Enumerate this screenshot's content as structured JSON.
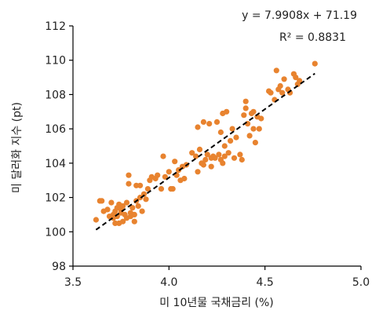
{
  "chart_data": {
    "type": "scatter",
    "xlabel": "미 10년물 국채금리 (%)",
    "ylabel": "미 달러화 지수 (pt)",
    "xlim": [
      3.5,
      5.0
    ],
    "ylim": [
      98,
      112
    ],
    "xticks": [
      3.5,
      4.0,
      4.5,
      5.0
    ],
    "xtick_labels": [
      "3.5",
      "4.0",
      "4.5",
      "5.0"
    ],
    "yticks": [
      98,
      100,
      102,
      104,
      106,
      108,
      110,
      112
    ],
    "ytick_labels": [
      "98",
      "100",
      "102",
      "104",
      "106",
      "108",
      "110",
      "112"
    ],
    "grid": false,
    "legend": "none",
    "colors": {
      "points": "#e8832f",
      "trendline": "#000000",
      "axis": "#000000"
    },
    "trendline": {
      "slope": 7.9908,
      "intercept": 71.19,
      "x_range": [
        3.62,
        4.76
      ],
      "style": "dashed"
    },
    "annotations": {
      "equation": "y = 7.9908x + 71.19",
      "r_squared": "R² = 0.8831"
    },
    "points": [
      [
        3.62,
        100.7
      ],
      [
        3.64,
        101.8
      ],
      [
        3.65,
        101.8
      ],
      [
        3.66,
        101.2
      ],
      [
        3.68,
        101.3
      ],
      [
        3.69,
        100.9
      ],
      [
        3.7,
        101.7
      ],
      [
        3.71,
        101.0
      ],
      [
        3.71,
        100.8
      ],
      [
        3.72,
        101.2
      ],
      [
        3.72,
        100.5
      ],
      [
        3.73,
        101.4
      ],
      [
        3.73,
        100.9
      ],
      [
        3.74,
        101.6
      ],
      [
        3.74,
        100.5
      ],
      [
        3.75,
        101.1
      ],
      [
        3.75,
        101.3
      ],
      [
        3.76,
        100.6
      ],
      [
        3.76,
        101.5
      ],
      [
        3.77,
        101.0
      ],
      [
        3.78,
        101.7
      ],
      [
        3.78,
        100.8
      ],
      [
        3.79,
        102.8
      ],
      [
        3.79,
        103.3
      ],
      [
        3.8,
        101.1
      ],
      [
        3.8,
        100.9
      ],
      [
        3.81,
        101.4
      ],
      [
        3.82,
        101.0
      ],
      [
        3.82,
        100.6
      ],
      [
        3.83,
        101.8
      ],
      [
        3.83,
        102.7
      ],
      [
        3.84,
        101.5
      ],
      [
        3.85,
        102.7
      ],
      [
        3.85,
        102.0
      ],
      [
        3.86,
        101.2
      ],
      [
        3.87,
        102.2
      ],
      [
        3.88,
        101.9
      ],
      [
        3.89,
        102.5
      ],
      [
        3.9,
        103.0
      ],
      [
        3.91,
        103.2
      ],
      [
        3.93,
        103.1
      ],
      [
        3.94,
        103.3
      ],
      [
        3.96,
        102.5
      ],
      [
        3.97,
        104.4
      ],
      [
        3.98,
        103.2
      ],
      [
        4.0,
        103.5
      ],
      [
        4.01,
        102.5
      ],
      [
        4.02,
        102.5
      ],
      [
        4.03,
        104.1
      ],
      [
        4.04,
        103.3
      ],
      [
        4.05,
        103.6
      ],
      [
        4.06,
        103.0
      ],
      [
        4.07,
        103.8
      ],
      [
        4.08,
        103.1
      ],
      [
        4.09,
        103.9
      ],
      [
        4.12,
        104.6
      ],
      [
        4.14,
        104.4
      ],
      [
        4.15,
        106.1
      ],
      [
        4.15,
        103.5
      ],
      [
        4.16,
        104.8
      ],
      [
        4.17,
        104.0
      ],
      [
        4.18,
        106.4
      ],
      [
        4.18,
        103.9
      ],
      [
        4.19,
        104.2
      ],
      [
        4.2,
        104.5
      ],
      [
        4.21,
        106.3
      ],
      [
        4.22,
        104.3
      ],
      [
        4.22,
        103.8
      ],
      [
        4.23,
        104.4
      ],
      [
        4.24,
        104.3
      ],
      [
        4.25,
        106.4
      ],
      [
        4.26,
        104.5
      ],
      [
        4.27,
        104.2
      ],
      [
        4.27,
        105.8
      ],
      [
        4.28,
        104.0
      ],
      [
        4.28,
        106.9
      ],
      [
        4.29,
        105.0
      ],
      [
        4.29,
        104.4
      ],
      [
        4.3,
        107.0
      ],
      [
        4.31,
        104.6
      ],
      [
        4.32,
        105.3
      ],
      [
        4.33,
        106.0
      ],
      [
        4.34,
        104.3
      ],
      [
        4.35,
        105.5
      ],
      [
        4.37,
        104.5
      ],
      [
        4.38,
        104.2
      ],
      [
        4.39,
        106.8
      ],
      [
        4.4,
        107.2
      ],
      [
        4.4,
        107.6
      ],
      [
        4.41,
        106.3
      ],
      [
        4.42,
        105.6
      ],
      [
        4.43,
        106.9
      ],
      [
        4.44,
        107.0
      ],
      [
        4.44,
        106.0
      ],
      [
        4.45,
        105.2
      ],
      [
        4.46,
        106.7
      ],
      [
        4.47,
        106.0
      ],
      [
        4.48,
        106.6
      ],
      [
        4.52,
        108.2
      ],
      [
        4.53,
        108.1
      ],
      [
        4.55,
        107.7
      ],
      [
        4.56,
        109.4
      ],
      [
        4.57,
        108.3
      ],
      [
        4.58,
        108.5
      ],
      [
        4.59,
        108.1
      ],
      [
        4.6,
        108.9
      ],
      [
        4.62,
        108.3
      ],
      [
        4.63,
        108.1
      ],
      [
        4.65,
        109.2
      ],
      [
        4.66,
        109.0
      ],
      [
        4.67,
        108.6
      ],
      [
        4.68,
        108.8
      ],
      [
        4.76,
        109.8
      ]
    ]
  }
}
